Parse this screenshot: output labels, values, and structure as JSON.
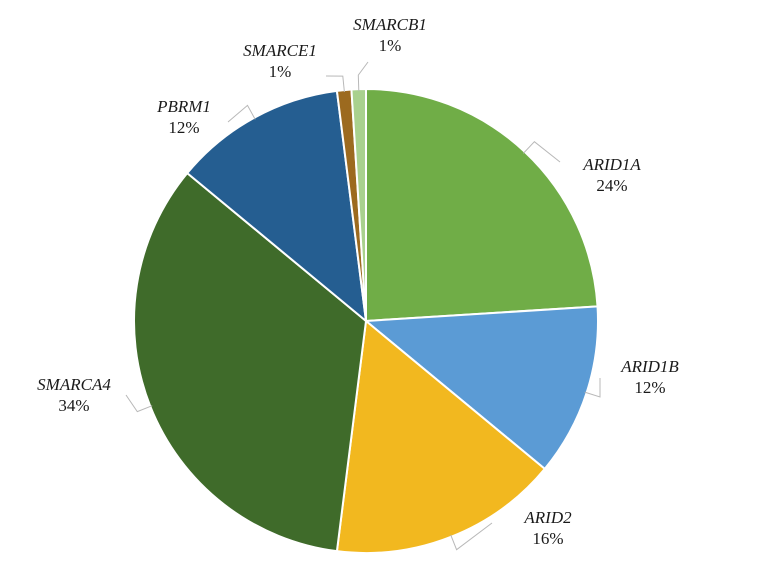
{
  "chart_data": {
    "type": "pie",
    "start": "12 o'clock",
    "direction": "clockwise",
    "legend": "none",
    "slices": [
      {
        "name": "ARID1A",
        "value": 24,
        "label": "24%",
        "color": "#70ad47"
      },
      {
        "name": "ARID1B",
        "value": 12,
        "label": "12%",
        "color": "#5b9bd5"
      },
      {
        "name": "ARID2",
        "value": 16,
        "label": "16%",
        "color": "#f2b81f"
      },
      {
        "name": "SMARCA4",
        "value": 34,
        "label": "34%",
        "color": "#3f6b2a"
      },
      {
        "name": "PBRM1",
        "value": 12,
        "label": "12%",
        "color": "#255e91"
      },
      {
        "name": "SMARCE1",
        "value": 1,
        "label": "1%",
        "color": "#9c6a1f"
      },
      {
        "name": "SMARCB1",
        "value": 1,
        "label": "1%",
        "color": "#a9d18e"
      }
    ]
  }
}
